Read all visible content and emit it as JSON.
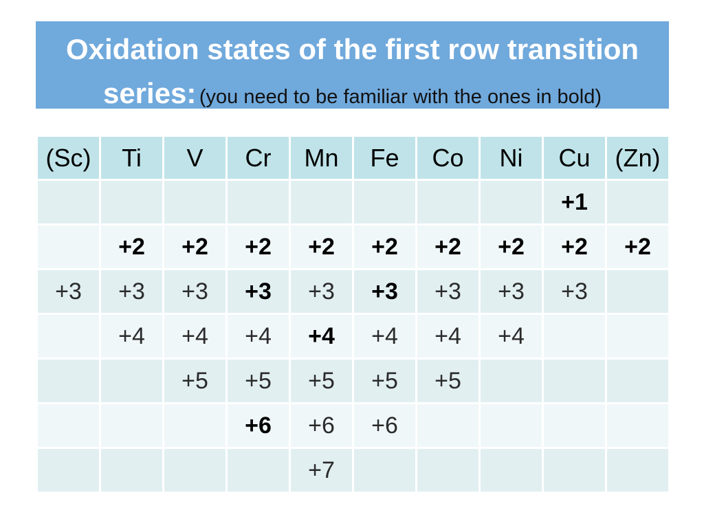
{
  "title": {
    "main": "Oxidation states of the first row transition series:",
    "sub": "(you need to be familiar with the ones in bold)"
  },
  "table": {
    "headers": [
      "(Sc)",
      "Ti",
      "V",
      "Cr",
      "Mn",
      "Fe",
      "Co",
      "Ni",
      "Cu",
      "(Zn)"
    ],
    "rows": [
      [
        {
          "v": ""
        },
        {
          "v": ""
        },
        {
          "v": ""
        },
        {
          "v": ""
        },
        {
          "v": ""
        },
        {
          "v": ""
        },
        {
          "v": ""
        },
        {
          "v": ""
        },
        {
          "v": "+1",
          "b": true
        },
        {
          "v": ""
        }
      ],
      [
        {
          "v": ""
        },
        {
          "v": "+2",
          "b": true
        },
        {
          "v": "+2",
          "b": true
        },
        {
          "v": "+2",
          "b": true
        },
        {
          "v": "+2",
          "b": true
        },
        {
          "v": "+2",
          "b": true
        },
        {
          "v": "+2",
          "b": true
        },
        {
          "v": "+2",
          "b": true
        },
        {
          "v": "+2",
          "b": true
        },
        {
          "v": "+2",
          "b": true
        }
      ],
      [
        {
          "v": "+3"
        },
        {
          "v": "+3"
        },
        {
          "v": "+3"
        },
        {
          "v": "+3",
          "b": true
        },
        {
          "v": "+3"
        },
        {
          "v": "+3",
          "b": true
        },
        {
          "v": "+3"
        },
        {
          "v": "+3"
        },
        {
          "v": "+3"
        },
        {
          "v": ""
        }
      ],
      [
        {
          "v": ""
        },
        {
          "v": "+4"
        },
        {
          "v": "+4"
        },
        {
          "v": "+4"
        },
        {
          "v": "+4",
          "b": true
        },
        {
          "v": "+4"
        },
        {
          "v": "+4"
        },
        {
          "v": "+4"
        },
        {
          "v": ""
        },
        {
          "v": ""
        }
      ],
      [
        {
          "v": ""
        },
        {
          "v": ""
        },
        {
          "v": "+5"
        },
        {
          "v": "+5"
        },
        {
          "v": "+5"
        },
        {
          "v": "+5"
        },
        {
          "v": "+5"
        },
        {
          "v": ""
        },
        {
          "v": ""
        },
        {
          "v": ""
        }
      ],
      [
        {
          "v": ""
        },
        {
          "v": ""
        },
        {
          "v": ""
        },
        {
          "v": "+6",
          "b": true
        },
        {
          "v": "+6"
        },
        {
          "v": "+6"
        },
        {
          "v": ""
        },
        {
          "v": ""
        },
        {
          "v": ""
        },
        {
          "v": ""
        }
      ],
      [
        {
          "v": ""
        },
        {
          "v": ""
        },
        {
          "v": ""
        },
        {
          "v": ""
        },
        {
          "v": "+7"
        },
        {
          "v": ""
        },
        {
          "v": ""
        },
        {
          "v": ""
        },
        {
          "v": ""
        },
        {
          "v": ""
        }
      ]
    ]
  }
}
